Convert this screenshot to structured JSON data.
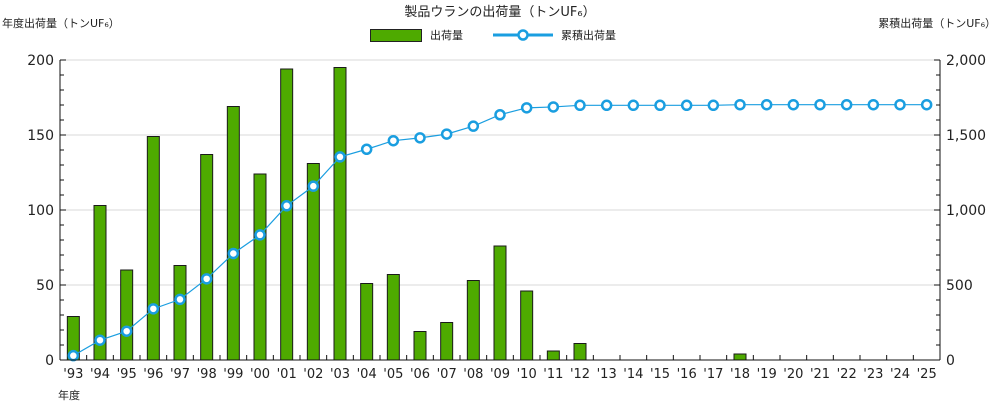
{
  "header": {
    "title": "製品ウランの出荷量（トンUF₆）",
    "left_axis_title": "年度出荷量（トンUF₆）",
    "right_axis_title": "累積出荷量（トンUF₆）",
    "x_axis_title": "年度"
  },
  "legend": {
    "bar_label": "出荷量",
    "line_label": "累積出荷量"
  },
  "colors": {
    "bar": "#4eaa00",
    "bar_border": "#1a1a1a",
    "line": "#1a9ee0",
    "grid": "#d9d9d9"
  },
  "chart_data": {
    "type": "bar+line",
    "title": "製品ウランの出荷量（トンUF₆）",
    "xlabel": "年度",
    "ylabel": "年度出荷量（トンUF₆）",
    "y2label": "累積出荷量（トンUF₆）",
    "ylim": [
      0,
      200
    ],
    "y2lim": [
      0,
      2000
    ],
    "yticks": [
      0,
      50,
      100,
      150,
      200
    ],
    "y2ticks": [
      "0",
      "500",
      "1,000",
      "1,500",
      "2,000"
    ],
    "grid": true,
    "legend_position": "top",
    "categories": [
      "'93",
      "'94",
      "'95",
      "'96",
      "'97",
      "'98",
      "'99",
      "'00",
      "'01",
      "'02",
      "'03",
      "'04",
      "'05",
      "'06",
      "'07",
      "'08",
      "'09",
      "'10",
      "'11",
      "'12",
      "'13",
      "'14",
      "'15",
      "'16",
      "'17",
      "'18",
      "'19",
      "'20",
      "'21",
      "'22",
      "'23",
      "'24",
      "'25"
    ],
    "series": [
      {
        "name": "出荷量",
        "type": "bar",
        "axis": "left",
        "values": [
          29,
          103,
          60,
          149,
          63,
          137,
          169,
          124,
          194,
          131,
          195,
          51,
          57,
          19,
          25,
          53,
          76,
          46,
          6,
          11,
          0,
          0,
          0,
          0,
          0,
          4,
          0,
          0,
          0,
          0,
          0,
          0,
          0
        ]
      },
      {
        "name": "累積出荷量",
        "type": "line",
        "axis": "right",
        "values": [
          29,
          132,
          192,
          341,
          404,
          541,
          710,
          834,
          1028,
          1159,
          1354,
          1405,
          1462,
          1481,
          1506,
          1559,
          1635,
          1681,
          1687,
          1698,
          1698,
          1698,
          1698,
          1698,
          1698,
          1702,
          1702,
          1702,
          1702,
          1702,
          1702,
          1702,
          1702
        ]
      }
    ]
  }
}
